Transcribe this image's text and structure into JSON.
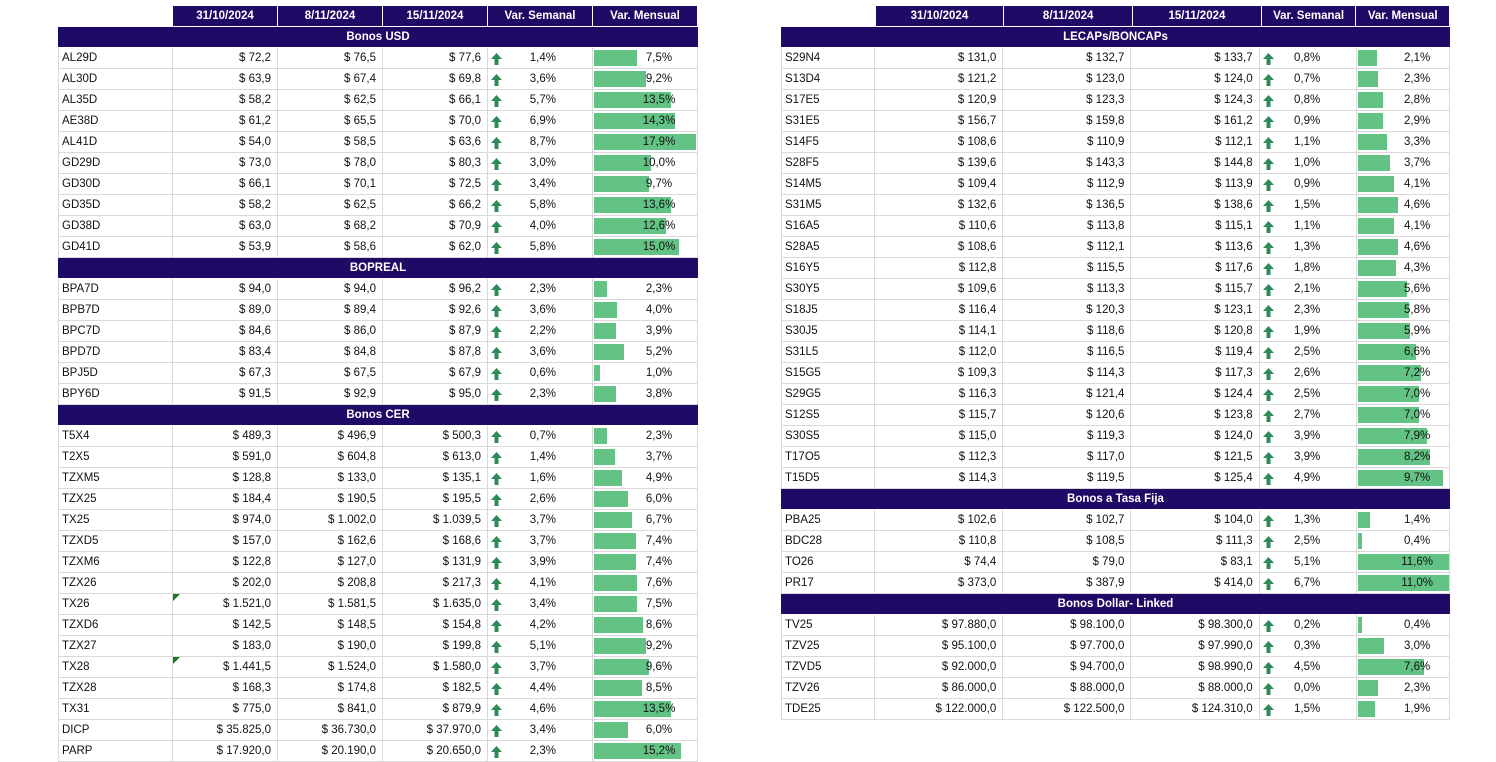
{
  "headers": [
    "31/10/2024",
    "8/11/2024",
    "15/11/2024",
    "Var. Semanal",
    "Var. Mensual"
  ],
  "colors": {
    "header_bg": "#1f0a66",
    "bar": "#63c384",
    "arrow": "#2e8b57"
  },
  "icons": {
    "weekly_change": "up-arrow-icon"
  },
  "left": [
    {
      "title": "Bonos USD",
      "rows": [
        {
          "name": "AL29D",
          "d1": "$ 72,2",
          "d2": "$ 76,5",
          "d3": "$ 77,6",
          "week": "1,4%",
          "month": "7,5%",
          "mv": 7.5
        },
        {
          "name": "AL30D",
          "d1": "$ 63,9",
          "d2": "$ 67,4",
          "d3": "$ 69,8",
          "week": "3,6%",
          "month": "9,2%",
          "mv": 9.2
        },
        {
          "name": "AL35D",
          "d1": "$ 58,2",
          "d2": "$ 62,5",
          "d3": "$ 66,1",
          "week": "5,7%",
          "month": "13,5%",
          "mv": 13.5
        },
        {
          "name": "AE38D",
          "d1": "$ 61,2",
          "d2": "$ 65,5",
          "d3": "$ 70,0",
          "week": "6,9%",
          "month": "14,3%",
          "mv": 14.3
        },
        {
          "name": "AL41D",
          "d1": "$ 54,0",
          "d2": "$ 58,5",
          "d3": "$ 63,6",
          "week": "8,7%",
          "month": "17,9%",
          "mv": 17.9
        },
        {
          "name": "GD29D",
          "d1": "$ 73,0",
          "d2": "$ 78,0",
          "d3": "$ 80,3",
          "week": "3,0%",
          "month": "10,0%",
          "mv": 10.0
        },
        {
          "name": "GD30D",
          "d1": "$ 66,1",
          "d2": "$ 70,1",
          "d3": "$ 72,5",
          "week": "3,4%",
          "month": "9,7%",
          "mv": 9.7
        },
        {
          "name": "GD35D",
          "d1": "$ 58,2",
          "d2": "$ 62,5",
          "d3": "$ 66,2",
          "week": "5,8%",
          "month": "13,6%",
          "mv": 13.6
        },
        {
          "name": "GD38D",
          "d1": "$ 63,0",
          "d2": "$ 68,2",
          "d3": "$ 70,9",
          "week": "4,0%",
          "month": "12,6%",
          "mv": 12.6
        },
        {
          "name": "GD41D",
          "d1": "$ 53,9",
          "d2": "$ 58,6",
          "d3": "$ 62,0",
          "week": "5,8%",
          "month": "15,0%",
          "mv": 15.0
        }
      ]
    },
    {
      "title": "BOPREAL",
      "rows": [
        {
          "name": "BPA7D",
          "d1": "$ 94,0",
          "d2": "$ 94,0",
          "d3": "$ 96,2",
          "week": "2,3%",
          "month": "2,3%",
          "mv": 2.3
        },
        {
          "name": "BPB7D",
          "d1": "$ 89,0",
          "d2": "$ 89,4",
          "d3": "$ 92,6",
          "week": "3,6%",
          "month": "4,0%",
          "mv": 4.0
        },
        {
          "name": "BPC7D",
          "d1": "$ 84,6",
          "d2": "$ 86,0",
          "d3": "$ 87,9",
          "week": "2,2%",
          "month": "3,9%",
          "mv": 3.9
        },
        {
          "name": "BPD7D",
          "d1": "$ 83,4",
          "d2": "$ 84,8",
          "d3": "$ 87,8",
          "week": "3,6%",
          "month": "5,2%",
          "mv": 5.2
        },
        {
          "name": "BPJ5D",
          "d1": "$ 67,3",
          "d2": "$ 67,5",
          "d3": "$ 67,9",
          "week": "0,6%",
          "month": "1,0%",
          "mv": 1.0
        },
        {
          "name": "BPY6D",
          "d1": "$ 91,5",
          "d2": "$ 92,9",
          "d3": "$ 95,0",
          "week": "2,3%",
          "month": "3,8%",
          "mv": 3.8
        }
      ]
    },
    {
      "title": "Bonos CER",
      "rows": [
        {
          "name": "T5X4",
          "d1": "$ 489,3",
          "d2": "$ 496,9",
          "d3": "$ 500,3",
          "week": "0,7%",
          "month": "2,3%",
          "mv": 2.3
        },
        {
          "name": "T2X5",
          "d1": "$ 591,0",
          "d2": "$ 604,8",
          "d3": "$ 613,0",
          "week": "1,4%",
          "month": "3,7%",
          "mv": 3.7
        },
        {
          "name": "TZXM5",
          "d1": "$ 128,8",
          "d2": "$ 133,0",
          "d3": "$ 135,1",
          "week": "1,6%",
          "month": "4,9%",
          "mv": 4.9
        },
        {
          "name": "TZX25",
          "d1": "$ 184,4",
          "d2": "$ 190,5",
          "d3": "$ 195,5",
          "week": "2,6%",
          "month": "6,0%",
          "mv": 6.0
        },
        {
          "name": "TX25",
          "d1": "$ 974,0",
          "d2": "$ 1.002,0",
          "d3": "$ 1.039,5",
          "week": "3,7%",
          "month": "6,7%",
          "mv": 6.7
        },
        {
          "name": "TZXD5",
          "d1": "$ 157,0",
          "d2": "$ 162,6",
          "d3": "$ 168,6",
          "week": "3,7%",
          "month": "7,4%",
          "mv": 7.4
        },
        {
          "name": "TZXM6",
          "d1": "$ 122,8",
          "d2": "$ 127,0",
          "d3": "$ 131,9",
          "week": "3,9%",
          "month": "7,4%",
          "mv": 7.4
        },
        {
          "name": "TZX26",
          "d1": "$ 202,0",
          "d2": "$ 208,8",
          "d3": "$ 217,3",
          "week": "4,1%",
          "month": "7,6%",
          "mv": 7.6
        },
        {
          "name": "TX26",
          "d1": "$ 1.521,0",
          "d2": "$ 1.581,5",
          "d3": "$ 1.635,0",
          "week": "3,4%",
          "month": "7,5%",
          "mv": 7.5,
          "flag": true
        },
        {
          "name": "TZXD6",
          "d1": "$ 142,5",
          "d2": "$ 148,5",
          "d3": "$ 154,8",
          "week": "4,2%",
          "month": "8,6%",
          "mv": 8.6
        },
        {
          "name": "TZX27",
          "d1": "$ 183,0",
          "d2": "$ 190,0",
          "d3": "$ 199,8",
          "week": "5,1%",
          "month": "9,2%",
          "mv": 9.2
        },
        {
          "name": "TX28",
          "d1": "$ 1.441,5",
          "d2": "$ 1.524,0",
          "d3": "$ 1.580,0",
          "week": "3,7%",
          "month": "9,6%",
          "mv": 9.6,
          "flag": true
        },
        {
          "name": "TZX28",
          "d1": "$ 168,3",
          "d2": "$ 174,8",
          "d3": "$ 182,5",
          "week": "4,4%",
          "month": "8,5%",
          "mv": 8.5
        },
        {
          "name": "TX31",
          "d1": "$ 775,0",
          "d2": "$ 841,0",
          "d3": "$ 879,9",
          "week": "4,6%",
          "month": "13,5%",
          "mv": 13.5
        },
        {
          "name": "DICP",
          "d1": "$ 35.825,0",
          "d2": "$ 36.730,0",
          "d3": "$ 37.970,0",
          "week": "3,4%",
          "month": "6,0%",
          "mv": 6.0
        },
        {
          "name": "PARP",
          "d1": "$ 17.920,0",
          "d2": "$ 20.190,0",
          "d3": "$ 20.650,0",
          "week": "2,3%",
          "month": "15,2%",
          "mv": 15.2
        }
      ]
    }
  ],
  "right": [
    {
      "title": "LECAPs/BONCAPs",
      "rows": [
        {
          "name": "S29N4",
          "d1": "$ 131,0",
          "d2": "$ 132,7",
          "d3": "$ 133,7",
          "week": "0,8%",
          "month": "2,1%",
          "mv": 2.1
        },
        {
          "name": "S13D4",
          "d1": "$ 121,2",
          "d2": "$ 123,0",
          "d3": "$ 124,0",
          "week": "0,7%",
          "month": "2,3%",
          "mv": 2.3
        },
        {
          "name": "S17E5",
          "d1": "$ 120,9",
          "d2": "$ 123,3",
          "d3": "$ 124,3",
          "week": "0,8%",
          "month": "2,8%",
          "mv": 2.8
        },
        {
          "name": "S31E5",
          "d1": "$ 156,7",
          "d2": "$ 159,8",
          "d3": "$ 161,2",
          "week": "0,9%",
          "month": "2,9%",
          "mv": 2.9
        },
        {
          "name": "S14F5",
          "d1": "$ 108,6",
          "d2": "$ 110,9",
          "d3": "$ 112,1",
          "week": "1,1%",
          "month": "3,3%",
          "mv": 3.3
        },
        {
          "name": "S28F5",
          "d1": "$ 139,6",
          "d2": "$ 143,3",
          "d3": "$ 144,8",
          "week": "1,0%",
          "month": "3,7%",
          "mv": 3.7
        },
        {
          "name": "S14M5",
          "d1": "$ 109,4",
          "d2": "$ 112,9",
          "d3": "$ 113,9",
          "week": "0,9%",
          "month": "4,1%",
          "mv": 4.1
        },
        {
          "name": "S31M5",
          "d1": "$ 132,6",
          "d2": "$ 136,5",
          "d3": "$ 138,6",
          "week": "1,5%",
          "month": "4,6%",
          "mv": 4.6
        },
        {
          "name": "S16A5",
          "d1": "$ 110,6",
          "d2": "$ 113,8",
          "d3": "$ 115,1",
          "week": "1,1%",
          "month": "4,1%",
          "mv": 4.1
        },
        {
          "name": "S28A5",
          "d1": "$ 108,6",
          "d2": "$ 112,1",
          "d3": "$ 113,6",
          "week": "1,3%",
          "month": "4,6%",
          "mv": 4.6
        },
        {
          "name": "S16Y5",
          "d1": "$ 112,8",
          "d2": "$ 115,5",
          "d3": "$ 117,6",
          "week": "1,8%",
          "month": "4,3%",
          "mv": 4.3
        },
        {
          "name": "S30Y5",
          "d1": "$ 109,6",
          "d2": "$ 113,3",
          "d3": "$ 115,7",
          "week": "2,1%",
          "month": "5,6%",
          "mv": 5.6
        },
        {
          "name": "S18J5",
          "d1": "$ 116,4",
          "d2": "$ 120,3",
          "d3": "$ 123,1",
          "week": "2,3%",
          "month": "5,8%",
          "mv": 5.8
        },
        {
          "name": "S30J5",
          "d1": "$ 114,1",
          "d2": "$ 118,6",
          "d3": "$ 120,8",
          "week": "1,9%",
          "month": "5,9%",
          "mv": 5.9
        },
        {
          "name": "S31L5",
          "d1": "$ 112,0",
          "d2": "$ 116,5",
          "d3": "$ 119,4",
          "week": "2,5%",
          "month": "6,6%",
          "mv": 6.6
        },
        {
          "name": "S15G5",
          "d1": "$ 109,3",
          "d2": "$ 114,3",
          "d3": "$ 117,3",
          "week": "2,6%",
          "month": "7,2%",
          "mv": 7.2
        },
        {
          "name": "S29G5",
          "d1": "$ 116,3",
          "d2": "$ 121,4",
          "d3": "$ 124,4",
          "week": "2,5%",
          "month": "7,0%",
          "mv": 7.0
        },
        {
          "name": "S12S5",
          "d1": "$ 115,7",
          "d2": "$ 120,6",
          "d3": "$ 123,8",
          "week": "2,7%",
          "month": "7,0%",
          "mv": 7.0
        },
        {
          "name": "S30S5",
          "d1": "$ 115,0",
          "d2": "$ 119,3",
          "d3": "$ 124,0",
          "week": "3,9%",
          "month": "7,9%",
          "mv": 7.9
        },
        {
          "name": "T17O5",
          "d1": "$ 112,3",
          "d2": "$ 117,0",
          "d3": "$ 121,5",
          "week": "3,9%",
          "month": "8,2%",
          "mv": 8.2
        },
        {
          "name": "T15D5",
          "d1": "$ 114,3",
          "d2": "$ 119,5",
          "d3": "$ 125,4",
          "week": "4,9%",
          "month": "9,7%",
          "mv": 9.7
        }
      ]
    },
    {
      "title": "Bonos a Tasa Fija",
      "rows": [
        {
          "name": "PBA25",
          "d1": "$ 102,6",
          "d2": "$ 102,7",
          "d3": "$ 104,0",
          "week": "1,3%",
          "month": "1,4%",
          "mv": 1.4
        },
        {
          "name": "BDC28",
          "d1": "$ 110,8",
          "d2": "$ 108,5",
          "d3": "$ 111,3",
          "week": "2,5%",
          "month": "0,4%",
          "mv": 0.4
        },
        {
          "name": "TO26",
          "d1": "$ 74,4",
          "d2": "$ 79,0",
          "d3": "$ 83,1",
          "week": "5,1%",
          "month": "11,6%",
          "mv": 11.6
        },
        {
          "name": "PR17",
          "d1": "$ 373,0",
          "d2": "$ 387,9",
          "d3": "$ 414,0",
          "week": "6,7%",
          "month": "11,0%",
          "mv": 11.0
        }
      ]
    },
    {
      "title": "Bonos Dollar- Linked",
      "rows": [
        {
          "name": "TV25",
          "d1": "$ 97.880,0",
          "d2": "$ 98.100,0",
          "d3": "$ 98.300,0",
          "week": "0,2%",
          "month": "0,4%",
          "mv": 0.4
        },
        {
          "name": "TZV25",
          "d1": "$ 95.100,0",
          "d2": "$ 97.700,0",
          "d3": "$ 97.990,0",
          "week": "0,3%",
          "month": "3,0%",
          "mv": 3.0
        },
        {
          "name": "TZVD5",
          "d1": "$ 92.000,0",
          "d2": "$ 94.700,0",
          "d3": "$ 98.990,0",
          "week": "4,5%",
          "month": "7,6%",
          "mv": 7.6
        },
        {
          "name": "TZV26",
          "d1": "$ 86.000,0",
          "d2": "$ 88.000,0",
          "d3": "$ 88.000,0",
          "week": "0,0%",
          "month": "2,3%",
          "mv": 2.3
        },
        {
          "name": "TDE25",
          "d1": "$ 122.000,0",
          "d2": "$ 122.500,0",
          "d3": "$ 124.310,0",
          "week": "1,5%",
          "month": "1,9%",
          "mv": 1.9
        }
      ]
    }
  ]
}
